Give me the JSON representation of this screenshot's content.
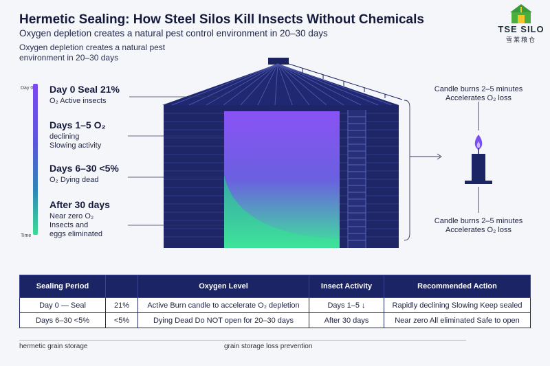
{
  "header": {
    "title": "Hermetic Sealing: How Steel Silos Kill Insects Without Chemicals",
    "subtitle": "Oxygen depletion creates a natural pest control environment in 20–30 days",
    "subtitle_repeat": "Oxygen depletion creates a natural pest environment in 20–30 days"
  },
  "logo": {
    "name": "TSE SILO",
    "chinese": "雪莱粮仓"
  },
  "timeline": {
    "top_label": "Day 0",
    "bottom_label": "Time",
    "stages": [
      {
        "heading": "Day 0 Seal 21%",
        "desc": "O₂ Active insects"
      },
      {
        "heading": "Days 1–5 O₂",
        "desc": "declining",
        "desc2": "Slowing activity"
      },
      {
        "heading": "Days 6–30 <5%",
        "desc": "O₂ Dying dead"
      },
      {
        "heading": "After 30 days",
        "desc": "Near zero O₂",
        "desc2": "Insects and",
        "desc3": "eggs eliminated"
      }
    ]
  },
  "candle": {
    "top_note": "Candle burns 2–5 minutes Accelerates O₂ loss",
    "bottom_note": "Candle burns 2–5 minutes Accelerates O₂ loss"
  },
  "table": {
    "headers": [
      "Sealing Period",
      "",
      "Oxygen Level",
      "Insect Activity",
      "Recommended Action"
    ],
    "rows": [
      [
        "Day 0 — Seal",
        "21%",
        "Active Burn candle to accelerate O₂ depletion",
        "Days 1–5 ↓",
        "Rapidly declining Slowing Keep sealed"
      ],
      [
        "Days 6–30 <5%",
        "<5%",
        "Dying Dead Do NOT open for 20–30 days",
        "After 30 days",
        "Near zero All eliminated Safe to open"
      ]
    ]
  },
  "footer": {
    "left": "hermetic grain storage",
    "right": "grain storage loss prevention"
  },
  "colors": {
    "navy": "#1b2465",
    "purple": "#7a48f2",
    "green": "#3bdc95"
  }
}
